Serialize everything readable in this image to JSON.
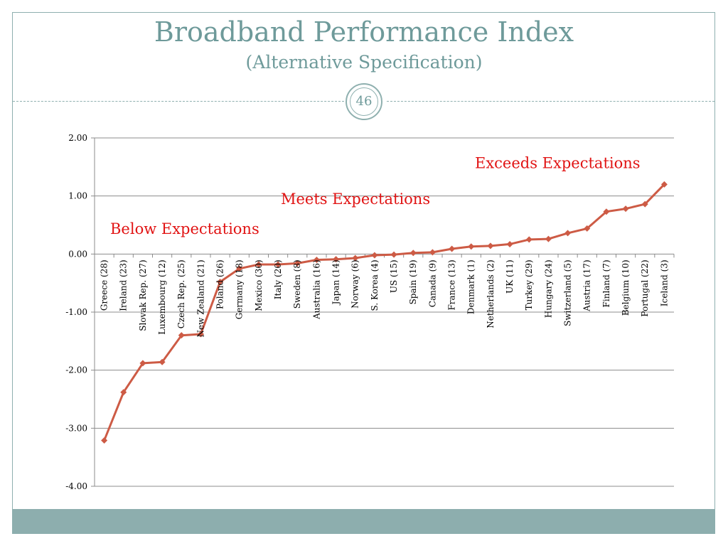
{
  "slide": {
    "title": "Broadband Performance Index",
    "subtitle": "(Alternative Specification)",
    "page_number": "46"
  },
  "colors": {
    "accent": "#8FB0AF",
    "title": "#6E9A9A",
    "series": "#CD5B45",
    "annotation": "#E11414",
    "grid": "#8C8C8C"
  },
  "chart_data": {
    "type": "line",
    "title": "",
    "xlabel": "",
    "ylabel": "",
    "ylim": [
      -4.0,
      2.0
    ],
    "yticks": [
      "2.00",
      "1.00",
      "0.00",
      "-1.00",
      "-2.00",
      "-3.00",
      "-4.00"
    ],
    "ytick_values": [
      2.0,
      1.0,
      0.0,
      -1.0,
      -2.0,
      -3.0,
      -4.0
    ],
    "grid": true,
    "legend": "none",
    "categories": [
      "Greece (28)",
      "Ireland (23)",
      "Slovak Rep. (27)",
      "Luxembourg (12)",
      "Czech Rep. (25)",
      "New Zealand (21)",
      "Poland (26)",
      "Germany (18)",
      "Mexico (30)",
      "Italy (20)",
      "Sweden (8)",
      "Australia (16)",
      "Japan (14)",
      "Norway (6)",
      "S. Korea (4)",
      "US (15)",
      "Spain (19)",
      "Canada (9)",
      "France (13)",
      "Denmark (1)",
      "Netherlands (2)",
      "UK (11)",
      "Turkey (29)",
      "Hungary (24)",
      "Switzerland (5)",
      "Austria (17)",
      "Finland (7)",
      "Belgium (10)",
      "Portugal (22)",
      "Iceland (3)"
    ],
    "series": [
      {
        "name": "Broadband Performance Index",
        "values": [
          -3.21,
          -2.38,
          -1.88,
          -1.86,
          -1.4,
          -1.38,
          -0.48,
          -0.25,
          -0.18,
          -0.18,
          -0.16,
          -0.1,
          -0.09,
          -0.07,
          -0.02,
          -0.01,
          0.02,
          0.03,
          0.09,
          0.13,
          0.14,
          0.17,
          0.25,
          0.26,
          0.36,
          0.44,
          0.73,
          0.78,
          0.86,
          1.2
        ]
      }
    ],
    "annotations": [
      {
        "id": "below",
        "text": "Below Expectations",
        "category_index": 3
      },
      {
        "id": "meets",
        "text": "Meets Expectations",
        "category_index": 13
      },
      {
        "id": "exceeds",
        "text": "Exceeds Expectations",
        "category_index": 25
      }
    ]
  }
}
